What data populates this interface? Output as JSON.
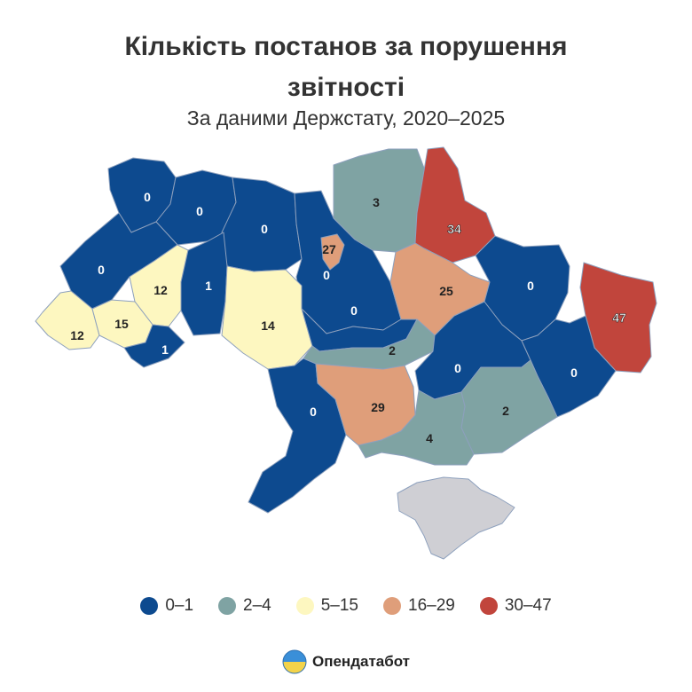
{
  "title_line1": "Кількість постанов за порушення",
  "title_line2": "звітності",
  "subtitle": "За даними Держстату, 2020–2025",
  "colors": {
    "c0_1": "#0d4a8f",
    "c2_4": "#7fa3a3",
    "c5_15": "#fdf7c0",
    "c16_29": "#df9e7a",
    "c30_47": "#c1453c",
    "nodata": "#cfcfd4",
    "border": "#8da0bd"
  },
  "legend": [
    {
      "label": "0–1",
      "color": "#0d4a8f"
    },
    {
      "label": "2–4",
      "color": "#7fa3a3"
    },
    {
      "label": "5–15",
      "color": "#fdf7c0"
    },
    {
      "label": "16–29",
      "color": "#df9e7a"
    },
    {
      "label": "30–47",
      "color": "#c1453c"
    }
  ],
  "regions": [
    {
      "id": "volyn",
      "value": "0",
      "bin": "c0_1"
    },
    {
      "id": "rivne",
      "value": "0",
      "bin": "c0_1"
    },
    {
      "id": "zhytomyr",
      "value": "0",
      "bin": "c0_1"
    },
    {
      "id": "kyiv-oblast",
      "value": "0",
      "bin": "c0_1"
    },
    {
      "id": "kyiv-city",
      "value": "27",
      "bin": "c16_29"
    },
    {
      "id": "chernihiv",
      "value": "3",
      "bin": "c2_4"
    },
    {
      "id": "sumy",
      "value": "34",
      "bin": "c30_47"
    },
    {
      "id": "lviv",
      "value": "0",
      "bin": "c0_1"
    },
    {
      "id": "ternopil",
      "value": "12",
      "bin": "c5_15"
    },
    {
      "id": "khmelnytskyi",
      "value": "1",
      "bin": "c0_1"
    },
    {
      "id": "zakarpattia",
      "value": "12",
      "bin": "c5_15"
    },
    {
      "id": "ivano-frankivsk",
      "value": "15",
      "bin": "c5_15"
    },
    {
      "id": "chernivtsi",
      "value": "1",
      "bin": "c0_1"
    },
    {
      "id": "vinnytsia",
      "value": "14",
      "bin": "c5_15"
    },
    {
      "id": "cherkasy",
      "value": "0",
      "bin": "c0_1"
    },
    {
      "id": "poltava",
      "value": "25",
      "bin": "c16_29"
    },
    {
      "id": "kharkiv",
      "value": "0",
      "bin": "c0_1"
    },
    {
      "id": "luhansk",
      "value": "47",
      "bin": "c30_47"
    },
    {
      "id": "kirovohrad",
      "value": "2",
      "bin": "c2_4"
    },
    {
      "id": "dnipro",
      "value": "0",
      "bin": "c0_1"
    },
    {
      "id": "donetsk",
      "value": "0",
      "bin": "c0_1"
    },
    {
      "id": "zaporizhzhia",
      "value": "2",
      "bin": "c2_4"
    },
    {
      "id": "odesa",
      "value": "0",
      "bin": "c0_1"
    },
    {
      "id": "mykolaiv",
      "value": "29",
      "bin": "c16_29"
    },
    {
      "id": "kherson",
      "value": "4",
      "bin": "c2_4"
    },
    {
      "id": "crimea",
      "value": "",
      "bin": "nodata"
    }
  ],
  "brand": "Опендатабот"
}
